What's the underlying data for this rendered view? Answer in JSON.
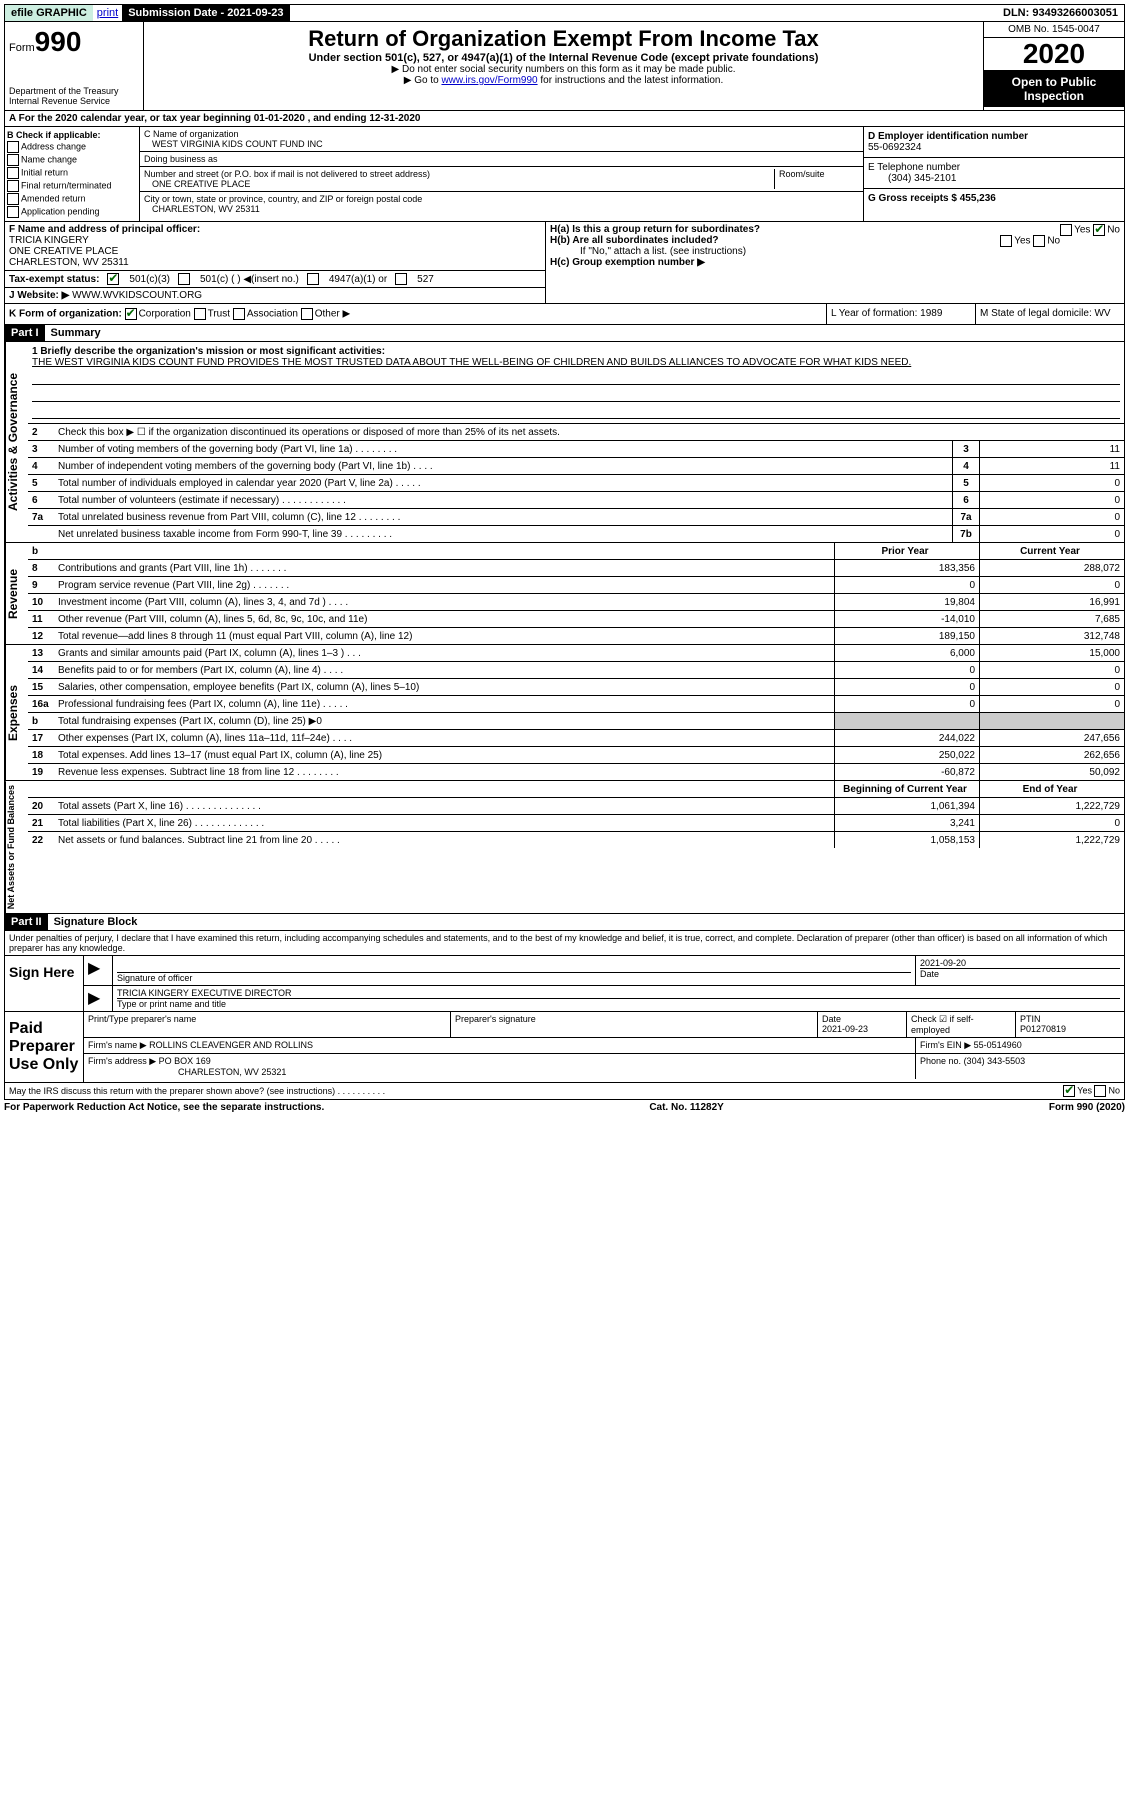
{
  "topbar": {
    "efile": "efile GRAPHIC",
    "print": "print",
    "submission_label": "Submission Date - 2021-09-23",
    "dln": "DLN: 93493266003051"
  },
  "header": {
    "form_prefix": "Form",
    "form_number": "990",
    "dept": "Department of the Treasury\nInternal Revenue Service",
    "title": "Return of Organization Exempt From Income Tax",
    "subtitle": "Under section 501(c), 527, or 4947(a)(1) of the Internal Revenue Code (except private foundations)",
    "instr1": "▶ Do not enter social security numbers on this form as it may be made public.",
    "instr2_pre": "▶ Go to ",
    "instr2_link": "www.irs.gov/Form990",
    "instr2_post": " for instructions and the latest information.",
    "omb": "OMB No. 1545-0047",
    "year": "2020",
    "open": "Open to Public Inspection"
  },
  "taxyear": "A For the 2020 calendar year, or tax year beginning 01-01-2020    , and ending 12-31-2020",
  "checkB": {
    "label": "B Check if applicable:",
    "items": [
      "Address change",
      "Name change",
      "Initial return",
      "Final return/terminated",
      "Amended return",
      "Application pending"
    ]
  },
  "org": {
    "name_label": "C Name of organization",
    "name": "WEST VIRGINIA KIDS COUNT FUND INC",
    "dba_label": "Doing business as",
    "street_label": "Number and street (or P.O. box if mail is not delivered to street address)",
    "room_label": "Room/suite",
    "street": "ONE CREATIVE PLACE",
    "city_label": "City or town, state or province, country, and ZIP or foreign postal code",
    "city": "CHARLESTON, WV  25311"
  },
  "right": {
    "ein_label": "D Employer identification number",
    "ein": "55-0692324",
    "phone_label": "E Telephone number",
    "phone": "(304) 345-2101",
    "gross_label": "G Gross receipts $ 455,236"
  },
  "officer": {
    "f_label": "F  Name and address of principal officer:",
    "name": "TRICIA KINGERY",
    "addr1": "ONE CREATIVE PLACE",
    "addr2": "CHARLESTON, WV  25311",
    "tax_status": "Tax-exempt status:",
    "status_501c3": "501(c)(3)",
    "status_501c": "501(c) (  ) ◀(insert no.)",
    "status_4947": "4947(a)(1) or",
    "status_527": "527",
    "website_label": "J   Website: ▶",
    "website": "WWW.WVKIDSCOUNT.ORG",
    "ha": "H(a)  Is this a group return for subordinates?",
    "hb": "H(b)  Are all subordinates included?",
    "hb_note": "If \"No,\" attach a list. (see instructions)",
    "hc": "H(c)  Group exemption number ▶"
  },
  "kline": {
    "k": "K Form of organization:",
    "corp": "Corporation",
    "trust": "Trust",
    "assoc": "Association",
    "other": "Other ▶",
    "l": "L Year of formation: 1989",
    "m": "M State of legal domicile: WV"
  },
  "part1": {
    "header": "Part I",
    "title": "Summary",
    "mission_label": "1   Briefly describe the organization's mission or most significant activities:",
    "mission": "THE WEST VIRGINIA KIDS COUNT FUND PROVIDES THE MOST TRUSTED DATA ABOUT THE WELL-BEING OF CHILDREN AND BUILDS ALLIANCES TO ADVOCATE FOR WHAT KIDS NEED.",
    "line2": "Check this box ▶ ☐  if the organization discontinued its operations or disposed of more than 25% of its net assets."
  },
  "sides": {
    "s1": "Activities & Governance",
    "s2": "Revenue",
    "s3": "Expenses",
    "s4": "Net Assets or Fund Balances"
  },
  "govlines": [
    {
      "n": "3",
      "d": "Number of voting members of the governing body (Part VI, line 1a)  .   .   .   .   .   .   .   .",
      "b": "3",
      "v": "11"
    },
    {
      "n": "4",
      "d": "Number of independent voting members of the governing body (Part VI, line 1b)  .   .   .   .",
      "b": "4",
      "v": "11"
    },
    {
      "n": "5",
      "d": "Total number of individuals employed in calendar year 2020 (Part V, line 2a)  .   .   .   .   .",
      "b": "5",
      "v": "0"
    },
    {
      "n": "6",
      "d": "Total number of volunteers (estimate if necessary)    .    .    .    .    .    .    .    .    .    .    .    .",
      "b": "6",
      "v": "0"
    },
    {
      "n": "7a",
      "d": "Total unrelated business revenue from Part VIII, column (C), line 12   .   .   .   .   .   .   .   .",
      "b": "7a",
      "v": "0"
    },
    {
      "n": "",
      "d": "Net unrelated business taxable income from Form 990-T, line 39   .   .   .   .   .   .   .   .   .",
      "b": "7b",
      "v": "0"
    }
  ],
  "colheaders": {
    "prior": "Prior Year",
    "current": "Current Year"
  },
  "revlines": [
    {
      "n": "8",
      "d": "Contributions and grants (Part VIII, line 1h)   .   .   .   .   .   .   .",
      "p": "183,356",
      "c": "288,072"
    },
    {
      "n": "9",
      "d": "Program service revenue (Part VIII, line 2g)   .   .   .   .   .   .   .",
      "p": "0",
      "c": "0"
    },
    {
      "n": "10",
      "d": "Investment income (Part VIII, column (A), lines 3, 4, and 7d )   .   .   .   .",
      "p": "19,804",
      "c": "16,991"
    },
    {
      "n": "11",
      "d": "Other revenue (Part VIII, column (A), lines 5, 6d, 8c, 9c, 10c, and 11e)",
      "p": "-14,010",
      "c": "7,685"
    },
    {
      "n": "12",
      "d": "Total revenue—add lines 8 through 11 (must equal Part VIII, column (A), line 12)",
      "p": "189,150",
      "c": "312,748"
    }
  ],
  "explines": [
    {
      "n": "13",
      "d": "Grants and similar amounts paid (Part IX, column (A), lines 1–3 )   .   .   .",
      "p": "6,000",
      "c": "15,000"
    },
    {
      "n": "14",
      "d": "Benefits paid to or for members (Part IX, column (A), line 4)   .   .   .   .",
      "p": "0",
      "c": "0"
    },
    {
      "n": "15",
      "d": "Salaries, other compensation, employee benefits (Part IX, column (A), lines 5–10)",
      "p": "0",
      "c": "0"
    },
    {
      "n": "16a",
      "d": "Professional fundraising fees (Part IX, column (A), line 11e)   .   .   .   .   .",
      "p": "0",
      "c": "0"
    },
    {
      "n": "b",
      "d": "Total fundraising expenses (Part IX, column (D), line 25) ▶0",
      "p": "",
      "c": "",
      "grey": true
    },
    {
      "n": "17",
      "d": "Other expenses (Part IX, column (A), lines 11a–11d, 11f–24e)   .   .   .   .",
      "p": "244,022",
      "c": "247,656"
    },
    {
      "n": "18",
      "d": "Total expenses. Add lines 13–17 (must equal Part IX, column (A), line 25)",
      "p": "250,022",
      "c": "262,656"
    },
    {
      "n": "19",
      "d": "Revenue less expenses. Subtract line 18 from line 12 .   .   .   .   .   .   .   .",
      "p": "-60,872",
      "c": "50,092"
    }
  ],
  "netheaders": {
    "begin": "Beginning of Current Year",
    "end": "End of Year"
  },
  "netlines": [
    {
      "n": "20",
      "d": "Total assets (Part X, line 16)  .   .   .   .   .   .   .   .   .   .   .   .   .   .",
      "p": "1,061,394",
      "c": "1,222,729"
    },
    {
      "n": "21",
      "d": "Total liabilities (Part X, line 26)  .   .   .   .   .   .   .   .   .   .   .   .   .",
      "p": "3,241",
      "c": "0"
    },
    {
      "n": "22",
      "d": "Net assets or fund balances. Subtract line 21 from line 20  .   .   .   .   .",
      "p": "1,058,153",
      "c": "1,222,729"
    }
  ],
  "part2": {
    "header": "Part II",
    "title": "Signature Block",
    "decl": "Under penalties of perjury, I declare that I have examined this return, including accompanying schedules and statements, and to the best of my knowledge and belief, it is true, correct, and complete. Declaration of preparer (other than officer) is based on all information of which preparer has any knowledge."
  },
  "sign": {
    "here": "Sign Here",
    "sig_label": "Signature of officer",
    "date": "2021-09-20",
    "date_label": "Date",
    "name": "TRICIA KINGERY  EXECUTIVE DIRECTOR",
    "name_label": "Type or print name and title"
  },
  "paid": {
    "label": "Paid Preparer Use Only",
    "prep_name_label": "Print/Type preparer's name",
    "prep_sig_label": "Preparer's signature",
    "date_label": "Date",
    "date": "2021-09-23",
    "check_label": "Check ☑ if self-employed",
    "ptin_label": "PTIN",
    "ptin": "P01270819",
    "firm_name_label": "Firm's name    ▶",
    "firm_name": "ROLLINS CLEAVENGER AND ROLLINS",
    "firm_ein_label": "Firm's EIN ▶",
    "firm_ein": "55-0514960",
    "firm_addr_label": "Firm's address ▶",
    "firm_addr": "PO BOX 169",
    "firm_city": "CHARLESTON, WV  25321",
    "phone_label": "Phone no.",
    "phone": "(304) 343-5503",
    "discuss": "May the IRS discuss this return with the preparer shown above? (see instructions)   .   .   .   .   .   .   .   .   .   ."
  },
  "footer": {
    "left": "For Paperwork Reduction Act Notice, see the separate instructions.",
    "mid": "Cat. No. 11282Y",
    "right": "Form 990 (2020)"
  }
}
